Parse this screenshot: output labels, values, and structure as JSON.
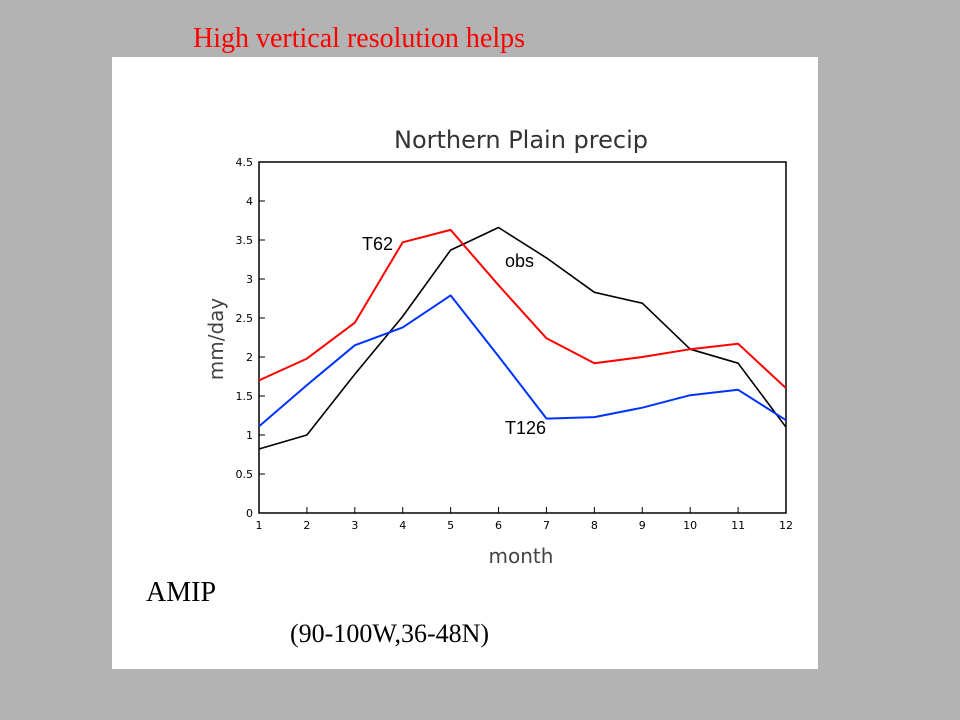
{
  "slide": {
    "title": "High vertical resolution helps",
    "caption": "AMIP",
    "region": "(90-100W,36-48N)"
  },
  "chart_data": {
    "type": "line",
    "title": "Northern Plain precip",
    "xlabel": "month",
    "ylabel": "mm/day",
    "xlim": [
      1,
      12
    ],
    "ylim": [
      0,
      4.5
    ],
    "x": [
      1,
      2,
      3,
      4,
      5,
      6,
      7,
      8,
      9,
      10,
      11,
      12
    ],
    "x_ticks": [
      "1",
      "2",
      "3",
      "4",
      "5",
      "6",
      "7",
      "8",
      "9",
      "10",
      "11",
      "12"
    ],
    "y_ticks": [
      "0",
      "0.5",
      "1",
      "1.5",
      "2",
      "2.5",
      "3",
      "3.5",
      "4",
      "4.5"
    ],
    "grid": false,
    "series": [
      {
        "name": "obs",
        "label": "obs",
        "color": "#000000",
        "values": [
          0.82,
          1.0,
          1.78,
          2.52,
          3.37,
          3.66,
          3.27,
          2.83,
          2.69,
          2.1,
          1.92,
          1.1
        ]
      },
      {
        "name": "T62",
        "label": "T62",
        "color": "#ff0000",
        "values": [
          1.7,
          1.98,
          2.44,
          3.47,
          3.63,
          2.92,
          2.24,
          1.92,
          2.0,
          2.1,
          2.17,
          1.6
        ]
      },
      {
        "name": "T126",
        "label": "T126",
        "color": "#0033ff",
        "values": [
          1.11,
          1.64,
          2.15,
          2.38,
          2.79,
          2.01,
          1.21,
          1.23,
          1.35,
          1.51,
          1.58,
          1.19
        ]
      }
    ]
  }
}
